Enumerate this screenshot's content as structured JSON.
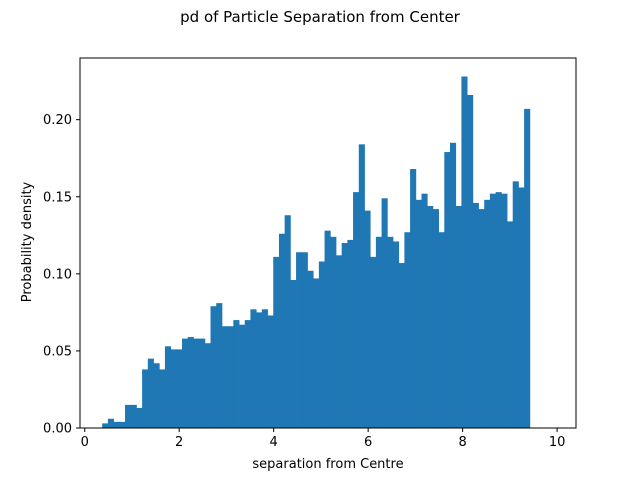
{
  "chart_data": {
    "type": "bar",
    "title": "pd of Particle Separation from Center",
    "xlabel": "separation from Centre",
    "ylabel": "Probability density",
    "xlim": [
      -0.1,
      10.4
    ],
    "ylim": [
      0,
      0.24
    ],
    "xticks": [
      0,
      2,
      4,
      6,
      8,
      10
    ],
    "xtick_labels": [
      "0",
      "2",
      "4",
      "6",
      "8",
      "10"
    ],
    "yticks": [
      0.0,
      0.05,
      0.1,
      0.15,
      0.2
    ],
    "ytick_labels": [
      "0.00",
      "0.05",
      "0.10",
      "0.15",
      "0.20"
    ],
    "grid": false,
    "bar_color": "#1f77b4",
    "bin_start": 0.37,
    "bin_width": 0.1207,
    "values": [
      0.003,
      0.006,
      0.004,
      0.004,
      0.015,
      0.015,
      0.013,
      0.038,
      0.045,
      0.042,
      0.038,
      0.053,
      0.051,
      0.051,
      0.058,
      0.059,
      0.058,
      0.058,
      0.055,
      0.079,
      0.081,
      0.066,
      0.066,
      0.07,
      0.067,
      0.07,
      0.077,
      0.075,
      0.077,
      0.073,
      0.111,
      0.126,
      0.138,
      0.096,
      0.114,
      0.114,
      0.102,
      0.097,
      0.108,
      0.128,
      0.124,
      0.112,
      0.12,
      0.122,
      0.153,
      0.184,
      0.141,
      0.111,
      0.124,
      0.149,
      0.124,
      0.121,
      0.107,
      0.127,
      0.168,
      0.148,
      0.152,
      0.144,
      0.142,
      0.127,
      0.179,
      0.185,
      0.144,
      0.228,
      0.216,
      0.146,
      0.142,
      0.148,
      0.152,
      0.153,
      0.152,
      0.134,
      0.16,
      0.156,
      0.207
    ]
  }
}
